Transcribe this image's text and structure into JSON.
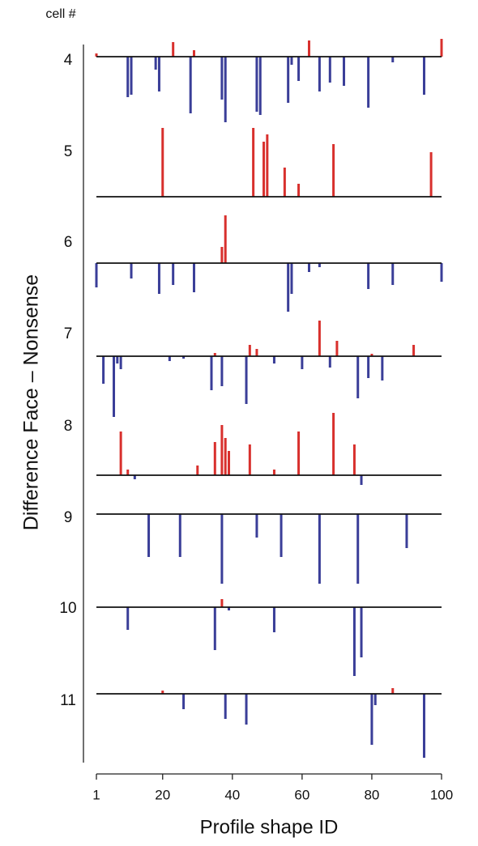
{
  "chart_data": {
    "type": "stem",
    "panel_label_title": "cell #",
    "xlabel": "Profile shape ID",
    "ylabel": "Difference Face – Nonsense",
    "xlim": [
      1,
      100
    ],
    "xticks": [
      1,
      20,
      40,
      60,
      80,
      100
    ],
    "positive_color": "#d8302d",
    "negative_color": "#3a3e98",
    "series": [
      {
        "name": "4",
        "x": [
          1,
          23,
          29,
          62,
          100,
          10,
          11,
          18,
          19,
          28,
          37,
          38,
          47,
          48,
          56,
          57,
          59,
          65,
          68,
          72,
          79,
          86,
          95
        ],
        "values": [
          0.4,
          1.8,
          0.8,
          2.0,
          2.2,
          -5.0,
          -4.7,
          -1.6,
          -4.3,
          -7.0,
          -5.3,
          -8.1,
          -6.8,
          -7.2,
          -5.7,
          -1.0,
          -3.0,
          -4.3,
          -3.2,
          -3.6,
          -6.3,
          -0.7,
          -4.7
        ]
      },
      {
        "name": "5",
        "x": [
          20,
          46,
          49,
          50,
          55,
          59,
          69,
          97
        ],
        "values": [
          8.5,
          8.5,
          6.8,
          7.7,
          3.6,
          1.6,
          6.5,
          5.5
        ]
      },
      {
        "name": "6",
        "x": [
          37,
          38,
          1,
          11,
          19,
          23,
          29,
          56,
          57,
          62,
          65,
          79,
          86,
          100
        ],
        "values": [
          2.0,
          5.9,
          -3.0,
          -1.9,
          -3.8,
          -2.7,
          -3.6,
          -6.0,
          -3.8,
          -1.1,
          -0.5,
          -3.2,
          -2.7,
          -2.3
        ]
      },
      {
        "name": "7",
        "x": [
          35,
          45,
          47,
          65,
          70,
          80,
          92,
          3,
          6,
          7,
          8,
          22,
          26,
          34,
          37,
          44,
          52,
          60,
          68,
          76,
          79,
          83
        ],
        "values": [
          0.4,
          1.4,
          0.9,
          4.4,
          1.9,
          0.3,
          1.4,
          -3.4,
          -7.5,
          -0.9,
          -1.6,
          -0.6,
          -0.3,
          -4.2,
          -3.7,
          -5.9,
          -0.9,
          -1.6,
          -1.4,
          -5.2,
          -2.7,
          -3.0
        ]
      },
      {
        "name": "8",
        "x": [
          8,
          10,
          30,
          35,
          37,
          38,
          39,
          45,
          52,
          59,
          69,
          75,
          12,
          77
        ],
        "values": [
          5.4,
          0.7,
          1.2,
          4.1,
          6.2,
          4.6,
          3.0,
          3.8,
          0.7,
          5.4,
          7.7,
          3.8,
          -0.5,
          -1.2
        ]
      },
      {
        "name": "9",
        "x": [
          16,
          25,
          37,
          47,
          54,
          65,
          76,
          90
        ],
        "values": [
          -5.3,
          -5.3,
          -8.6,
          -2.9,
          -5.3,
          -8.6,
          -8.6,
          -4.2
        ]
      },
      {
        "name": "10",
        "x": [
          37,
          10,
          35,
          39,
          52,
          75,
          77
        ],
        "values": [
          1.0,
          -2.8,
          -5.3,
          -0.4,
          -3.1,
          -8.5,
          -6.2
        ]
      },
      {
        "name": "11",
        "x": [
          20,
          86,
          26,
          38,
          44,
          80,
          81,
          95
        ],
        "values": [
          0.4,
          0.7,
          -1.9,
          -3.1,
          -3.8,
          -6.3,
          -1.4,
          -7.9
        ]
      }
    ]
  }
}
